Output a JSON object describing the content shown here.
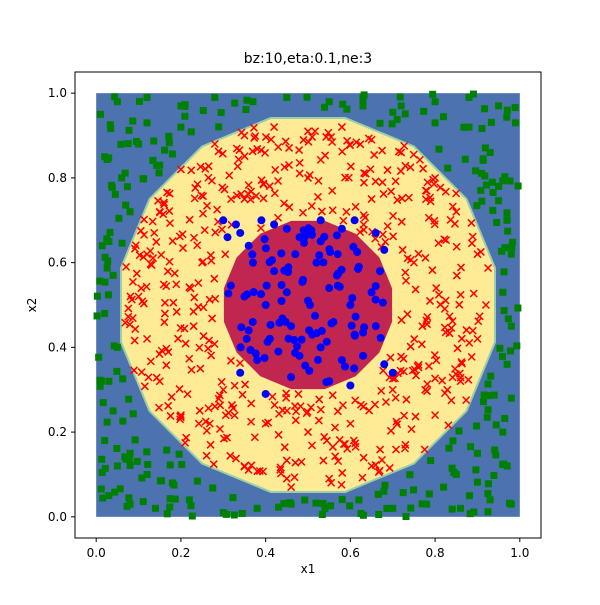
{
  "chart_data": {
    "type": "scatter",
    "title": "bz:10,eta:0.1,ne:3",
    "xlabel": "x1",
    "ylabel": "x2",
    "xlim": [
      -0.05,
      1.05
    ],
    "ylim": [
      -0.05,
      1.05
    ],
    "xticks": [
      "0.0",
      "0.2",
      "0.4",
      "0.6",
      "0.8",
      "1.0"
    ],
    "yticks": [
      "0.0",
      "0.2",
      "0.4",
      "0.6",
      "0.8",
      "1.0"
    ],
    "grid": false,
    "legend": "none",
    "regions": [
      {
        "class": "outer",
        "color": "#4c72b0",
        "x_range": [
          0,
          1
        ],
        "y_range": [
          0,
          1
        ]
      },
      {
        "class": "ring",
        "color": "#ffea96",
        "center": [
          0.5,
          0.5
        ],
        "radius": 0.45
      },
      {
        "class": "inner",
        "color": "#c0264f",
        "center": [
          0.5,
          0.5
        ],
        "radius": 0.2
      }
    ],
    "series": [
      {
        "class": "outer",
        "marker": "square",
        "color": "#008000",
        "count": 280,
        "points": [
          [
            0.01,
            0.95
          ],
          [
            0.05,
            0.98
          ],
          [
            0.12,
            0.99
          ],
          [
            0.2,
            0.97
          ],
          [
            0.28,
            0.99
          ],
          [
            0.37,
            0.98
          ],
          [
            0.45,
            0.99
          ],
          [
            0.55,
            0.98
          ],
          [
            0.63,
            0.99
          ],
          [
            0.72,
            0.97
          ],
          [
            0.8,
            0.98
          ],
          [
            0.88,
            0.99
          ],
          [
            0.95,
            0.97
          ],
          [
            0.99,
            0.93
          ],
          [
            0.02,
            0.85
          ],
          [
            0.06,
            0.8
          ],
          [
            0.1,
            0.88
          ],
          [
            0.15,
            0.83
          ],
          [
            0.08,
            0.72
          ],
          [
            0.03,
            0.65
          ],
          [
            0.04,
            0.57
          ],
          [
            0.02,
            0.48
          ],
          [
            0.05,
            0.4
          ],
          [
            0.03,
            0.32
          ],
          [
            0.04,
            0.25
          ],
          [
            0.02,
            0.18
          ],
          [
            0.05,
            0.12
          ],
          [
            0.03,
            0.05
          ],
          [
            0.08,
            0.03
          ],
          [
            0.14,
            0.02
          ],
          [
            0.22,
            0.04
          ],
          [
            0.3,
            0.01
          ],
          [
            0.38,
            0.02
          ],
          [
            0.46,
            0.03
          ],
          [
            0.54,
            0.02
          ],
          [
            0.62,
            0.04
          ],
          [
            0.7,
            0.02
          ],
          [
            0.78,
            0.03
          ],
          [
            0.86,
            0.02
          ],
          [
            0.93,
            0.04
          ],
          [
            0.98,
            0.03
          ],
          [
            0.97,
            0.12
          ],
          [
            0.96,
            0.2
          ],
          [
            0.98,
            0.28
          ],
          [
            0.97,
            0.36
          ],
          [
            0.98,
            0.45
          ],
          [
            0.96,
            0.53
          ],
          [
            0.98,
            0.62
          ],
          [
            0.97,
            0.7
          ],
          [
            0.95,
            0.78
          ],
          [
            0.93,
            0.86
          ],
          [
            0.88,
            0.92
          ],
          [
            0.8,
            0.93
          ],
          [
            0.12,
            0.93
          ],
          [
            0.2,
            0.92
          ],
          [
            0.08,
            0.15
          ],
          [
            0.12,
            0.1
          ],
          [
            0.18,
            0.08
          ],
          [
            0.85,
            0.1
          ],
          [
            0.9,
            0.15
          ],
          [
            0.82,
            0.07
          ]
        ]
      },
      {
        "class": "ring",
        "marker": "x",
        "color": "#ff0000",
        "count": 500,
        "points": [
          [
            0.28,
            0.88
          ],
          [
            0.35,
            0.9
          ],
          [
            0.42,
            0.92
          ],
          [
            0.5,
            0.91
          ],
          [
            0.58,
            0.92
          ],
          [
            0.65,
            0.89
          ],
          [
            0.72,
            0.86
          ],
          [
            0.2,
            0.82
          ],
          [
            0.8,
            0.8
          ],
          [
            0.15,
            0.72
          ],
          [
            0.85,
            0.72
          ],
          [
            0.12,
            0.62
          ],
          [
            0.9,
            0.62
          ],
          [
            0.1,
            0.52
          ],
          [
            0.92,
            0.5
          ],
          [
            0.12,
            0.42
          ],
          [
            0.9,
            0.42
          ],
          [
            0.15,
            0.32
          ],
          [
            0.86,
            0.32
          ],
          [
            0.2,
            0.24
          ],
          [
            0.8,
            0.24
          ],
          [
            0.27,
            0.17
          ],
          [
            0.73,
            0.17
          ],
          [
            0.35,
            0.12
          ],
          [
            0.45,
            0.09
          ],
          [
            0.55,
            0.09
          ],
          [
            0.65,
            0.12
          ],
          [
            0.25,
            0.6
          ],
          [
            0.75,
            0.6
          ],
          [
            0.23,
            0.45
          ],
          [
            0.77,
            0.45
          ],
          [
            0.3,
            0.3
          ],
          [
            0.7,
            0.3
          ],
          [
            0.35,
            0.75
          ],
          [
            0.65,
            0.75
          ],
          [
            0.5,
            0.8
          ],
          [
            0.5,
            0.2
          ],
          [
            0.4,
            0.22
          ],
          [
            0.6,
            0.22
          ]
        ]
      },
      {
        "class": "inner",
        "marker": "circle",
        "color": "#0000ff",
        "count": 130,
        "points": [
          [
            0.3,
            0.7
          ],
          [
            0.33,
            0.69
          ],
          [
            0.31,
            0.66
          ],
          [
            0.34,
            0.67
          ],
          [
            0.36,
            0.64
          ],
          [
            0.39,
            0.7
          ],
          [
            0.42,
            0.69
          ],
          [
            0.45,
            0.68
          ],
          [
            0.48,
            0.66
          ],
          [
            0.53,
            0.7
          ],
          [
            0.58,
            0.68
          ],
          [
            0.61,
            0.7
          ],
          [
            0.66,
            0.67
          ],
          [
            0.68,
            0.63
          ],
          [
            0.37,
            0.6
          ],
          [
            0.42,
            0.58
          ],
          [
            0.47,
            0.62
          ],
          [
            0.52,
            0.6
          ],
          [
            0.57,
            0.62
          ],
          [
            0.62,
            0.59
          ],
          [
            0.67,
            0.58
          ],
          [
            0.35,
            0.52
          ],
          [
            0.4,
            0.5
          ],
          [
            0.45,
            0.53
          ],
          [
            0.5,
            0.51
          ],
          [
            0.55,
            0.54
          ],
          [
            0.6,
            0.5
          ],
          [
            0.65,
            0.53
          ],
          [
            0.36,
            0.44
          ],
          [
            0.41,
            0.42
          ],
          [
            0.46,
            0.45
          ],
          [
            0.51,
            0.43
          ],
          [
            0.56,
            0.46
          ],
          [
            0.61,
            0.43
          ],
          [
            0.66,
            0.45
          ],
          [
            0.38,
            0.37
          ],
          [
            0.43,
            0.39
          ],
          [
            0.48,
            0.38
          ],
          [
            0.53,
            0.4
          ],
          [
            0.58,
            0.37
          ],
          [
            0.63,
            0.38
          ],
          [
            0.68,
            0.36
          ],
          [
            0.34,
            0.34
          ],
          [
            0.7,
            0.34
          ],
          [
            0.46,
            0.33
          ],
          [
            0.55,
            0.32
          ],
          [
            0.6,
            0.31
          ],
          [
            0.4,
            0.29
          ]
        ]
      }
    ]
  }
}
